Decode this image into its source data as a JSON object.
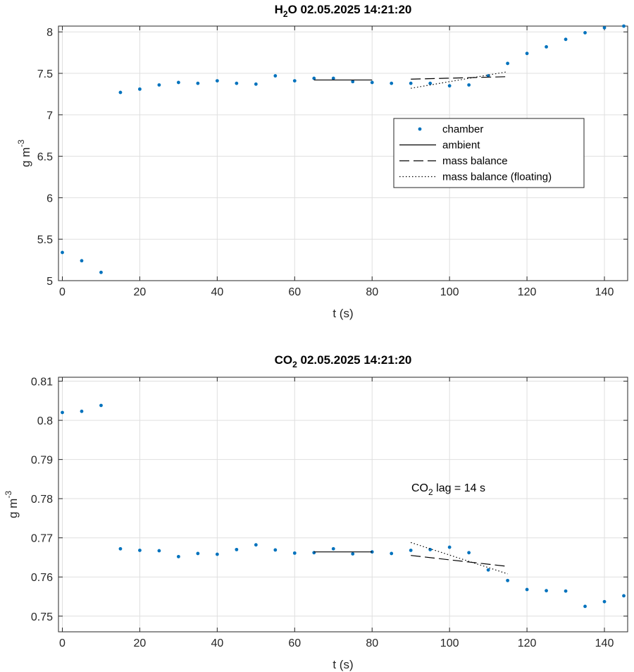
{
  "chart_data": [
    {
      "type": "scatter",
      "title_main": "H",
      "title_sub": "2",
      "title_rest": "O  02.05.2025 14:21:20",
      "ylabel_main": "g m",
      "ylabel_sup": "-3",
      "xlabel": "t (s)",
      "xlim": [
        -1,
        146
      ],
      "ylim": [
        5,
        8.07
      ],
      "xticks": [
        0,
        20,
        40,
        60,
        80,
        100,
        120,
        140
      ],
      "yticks": [
        5,
        5.5,
        6,
        6.5,
        7,
        7.5,
        8
      ],
      "ytick_labels": [
        "5",
        "5.5",
        "6",
        "6.5",
        "7",
        "7.5",
        "8"
      ],
      "legend": {
        "placement": "center-right",
        "entries": [
          "chamber",
          "ambient",
          "mass balance",
          "mass balance (floating)"
        ]
      },
      "series": [
        {
          "name": "chamber",
          "style": "dots",
          "color": "#0072bd",
          "x": [
            0,
            5,
            10,
            15,
            20,
            25,
            30,
            35,
            40,
            45,
            50,
            55,
            60,
            65,
            70,
            75,
            80,
            85,
            90,
            95,
            100,
            105,
            110,
            115,
            120,
            125,
            130,
            135,
            140,
            145
          ],
          "y": [
            5.34,
            5.24,
            5.1,
            7.27,
            7.31,
            7.36,
            7.39,
            7.38,
            7.41,
            7.38,
            7.37,
            7.47,
            7.41,
            7.44,
            7.44,
            7.4,
            7.39,
            7.38,
            7.38,
            7.38,
            7.35,
            7.36,
            7.47,
            7.62,
            7.74,
            7.82,
            7.91,
            7.99,
            8.05,
            8.07
          ]
        },
        {
          "name": "ambient",
          "style": "solid",
          "color": "#000000",
          "x": [
            65,
            80
          ],
          "y": [
            7.42,
            7.42
          ]
        },
        {
          "name": "mass balance",
          "style": "dashed",
          "color": "#000000",
          "x": [
            90,
            115
          ],
          "y": [
            7.43,
            7.46
          ]
        },
        {
          "name": "mass balance (floating)",
          "style": "dotted",
          "color": "#000000",
          "x": [
            90,
            115
          ],
          "y": [
            7.32,
            7.52
          ]
        }
      ]
    },
    {
      "type": "scatter",
      "title_main": "CO",
      "title_sub": "2",
      "title_rest": "  02.05.2025 14:21:20",
      "ylabel_main": "g m",
      "ylabel_sup": "-3",
      "xlabel": "t (s)",
      "xlim": [
        -1,
        146
      ],
      "ylim": [
        0.746,
        0.811
      ],
      "xticks": [
        0,
        20,
        40,
        60,
        80,
        100,
        120,
        140
      ],
      "yticks": [
        0.75,
        0.76,
        0.77,
        0.78,
        0.79,
        0.8,
        0.81
      ],
      "ytick_labels": [
        "0.75",
        "0.76",
        "0.77",
        "0.78",
        "0.79",
        "0.8",
        "0.81"
      ],
      "annotation": {
        "main": "CO",
        "sub": "2",
        "rest": " lag = 14 s"
      },
      "series": [
        {
          "name": "chamber",
          "style": "dots",
          "color": "#0072bd",
          "x": [
            0,
            5,
            10,
            15,
            20,
            25,
            30,
            35,
            40,
            45,
            50,
            55,
            60,
            65,
            70,
            75,
            80,
            85,
            90,
            95,
            100,
            105,
            110,
            115,
            120,
            125,
            130,
            135,
            140,
            145
          ],
          "y": [
            0.802,
            0.8023,
            0.8038,
            0.7672,
            0.7668,
            0.7667,
            0.7652,
            0.766,
            0.7658,
            0.767,
            0.7682,
            0.7669,
            0.7661,
            0.7662,
            0.7672,
            0.7659,
            0.7664,
            0.766,
            0.7668,
            0.767,
            0.7676,
            0.7662,
            0.7618,
            0.7591,
            0.7568,
            0.7565,
            0.7564,
            0.7525,
            0.7537,
            0.7552
          ]
        },
        {
          "name": "ambient",
          "style": "solid",
          "color": "#000000",
          "x": [
            65,
            80
          ],
          "y": [
            0.7664,
            0.7664
          ]
        },
        {
          "name": "mass balance",
          "style": "dashed",
          "color": "#000000",
          "x": [
            90,
            115
          ],
          "y": [
            0.7655,
            0.7627
          ]
        },
        {
          "name": "mass balance (floating)",
          "style": "dotted",
          "color": "#000000",
          "x": [
            90,
            115
          ],
          "y": [
            0.7688,
            0.7608
          ]
        }
      ]
    }
  ]
}
